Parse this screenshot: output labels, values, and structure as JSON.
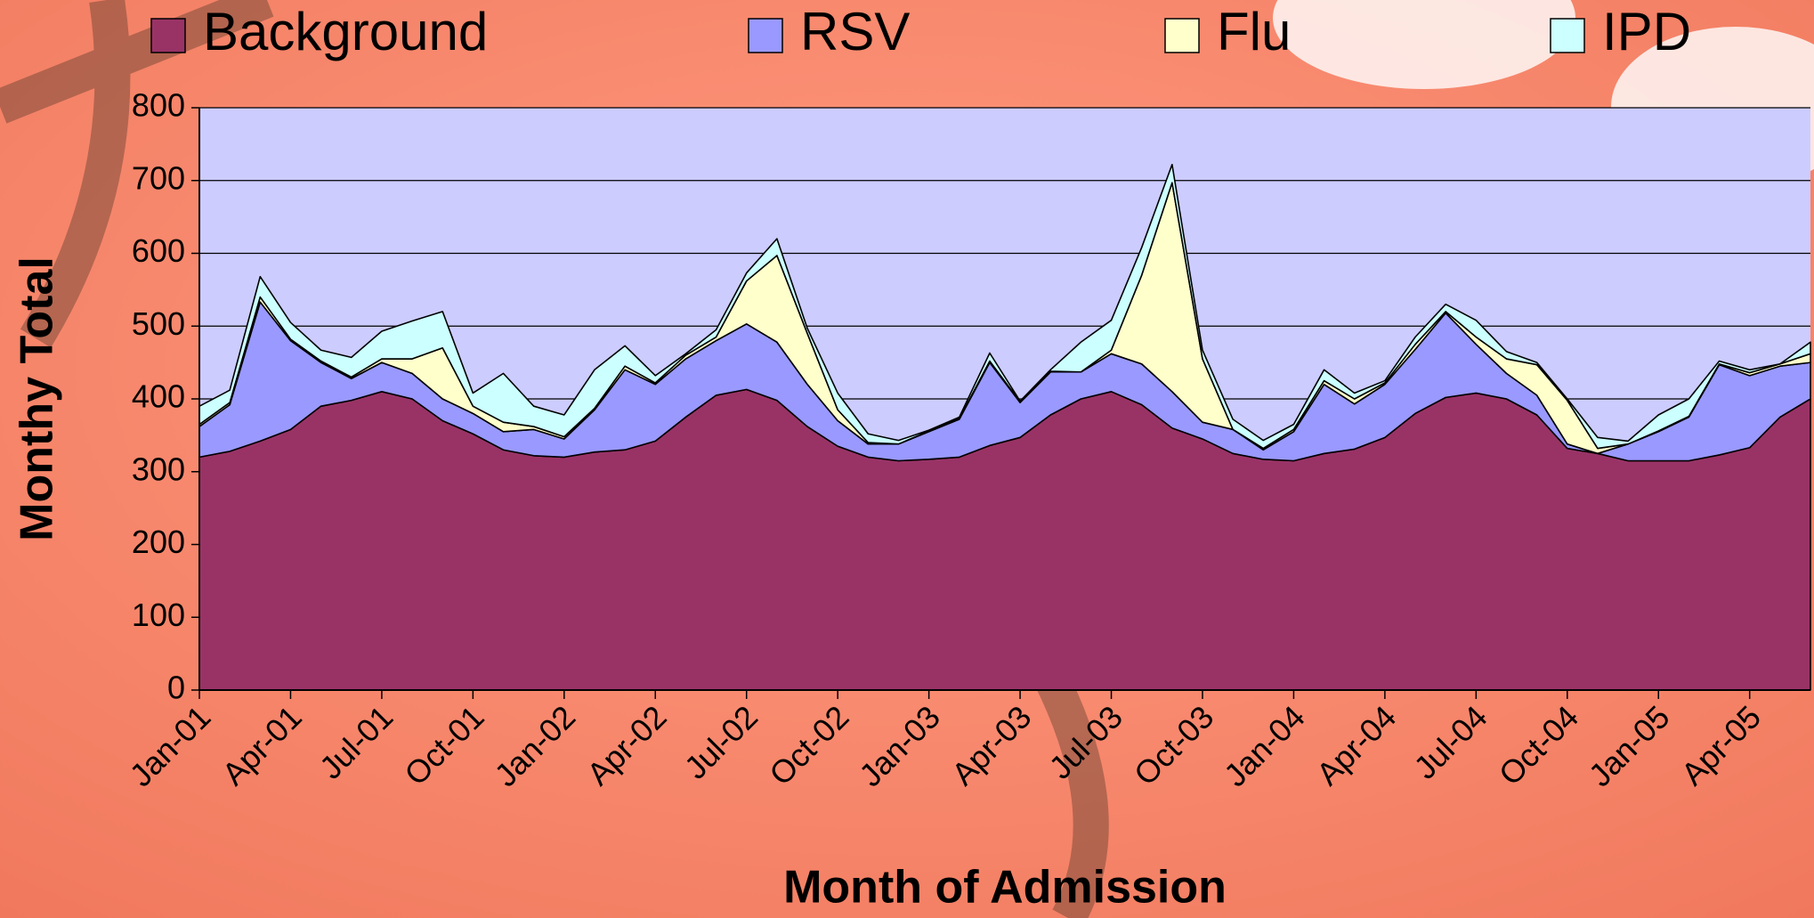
{
  "chart_data": {
    "type": "stacked-area",
    "x_label": "Month of Admission",
    "y_label": "Monthy Total",
    "legend": "top",
    "grid": true,
    "ylim": [
      0,
      800
    ],
    "yticks": [
      0,
      100,
      200,
      300,
      400,
      500,
      600,
      700,
      800
    ],
    "categories": [
      "Jan-01",
      null,
      null,
      "Apr-01",
      null,
      null,
      "Jul-01",
      null,
      null,
      "Oct-01",
      null,
      null,
      "Jan-02",
      null,
      null,
      "Apr-02",
      null,
      null,
      "Jul-02",
      null,
      null,
      "Oct-02",
      null,
      null,
      "Jan-03",
      null,
      null,
      "Apr-03",
      null,
      null,
      "Jul-03",
      null,
      null,
      "Oct-03",
      null,
      null,
      "Jan-04",
      null,
      null,
      "Apr-04",
      null,
      null,
      "Jul-04",
      null,
      null,
      "Oct-04",
      null,
      null,
      "Jan-05",
      null,
      null,
      "Apr-05",
      null,
      null
    ],
    "series": [
      {
        "name": "Background",
        "color": "#993366",
        "values": [
          320,
          328,
          342,
          358,
          390,
          398,
          410,
          400,
          370,
          352,
          330,
          322,
          320,
          327,
          330,
          342,
          375,
          405,
          413,
          398,
          362,
          335,
          320,
          315,
          317,
          320,
          336,
          347,
          378,
          400,
          410,
          392,
          360,
          345,
          325,
          317,
          315,
          325,
          331,
          347,
          380,
          402,
          408,
          400,
          378,
          332,
          325,
          315,
          315,
          315,
          323,
          333,
          375,
          400
        ]
      },
      {
        "name": "RSV",
        "color": "#9999ff",
        "values": [
          42,
          64,
          191,
          122,
          60,
          30,
          40,
          35,
          30,
          28,
          25,
          36,
          25,
          58,
          110,
          78,
          80,
          75,
          90,
          80,
          58,
          35,
          18,
          23,
          38,
          52,
          114,
          48,
          59,
          37,
          52,
          56,
          50,
          23,
          33,
          13,
          40,
          95,
          62,
          73,
          88,
          116,
          67,
          35,
          27,
          6,
          0,
          23,
          40,
          60,
          124,
          99,
          70,
          50
        ]
      },
      {
        "name": "Flu",
        "color": "#ffffcc",
        "values": [
          3,
          3,
          7,
          2,
          2,
          2,
          5,
          20,
          70,
          10,
          13,
          4,
          3,
          2,
          5,
          2,
          5,
          5,
          59,
          119,
          70,
          15,
          2,
          0,
          1,
          1,
          2,
          1,
          1,
          0,
          5,
          122,
          287,
          87,
          0,
          2,
          3,
          5,
          7,
          2,
          7,
          2,
          10,
          20,
          42,
          60,
          7,
          0,
          1,
          1,
          1,
          4,
          3,
          12
        ]
      },
      {
        "name": "IPD",
        "color": "#ccffff",
        "values": [
          25,
          17,
          28,
          23,
          15,
          27,
          38,
          52,
          50,
          18,
          67,
          28,
          30,
          53,
          28,
          10,
          2,
          10,
          11,
          23,
          7,
          23,
          12,
          5,
          1,
          2,
          11,
          1,
          2,
          41,
          41,
          38,
          25,
          12,
          14,
          11,
          7,
          15,
          8,
          3,
          10,
          10,
          23,
          10,
          3,
          2,
          15,
          4,
          22,
          24,
          4,
          4,
          0,
          16
        ]
      }
    ]
  }
}
